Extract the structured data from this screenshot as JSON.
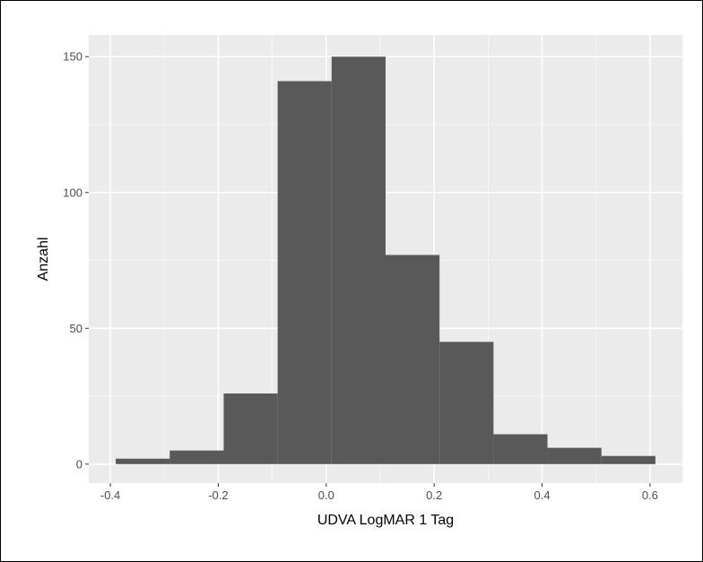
{
  "chart_data": {
    "type": "bar",
    "subtype": "histogram",
    "title": "",
    "xlabel": "UDVA LogMAR 1 Tag",
    "ylabel": "Anzahl",
    "xlim": [
      -0.44,
      0.66
    ],
    "ylim": [
      -7,
      158
    ],
    "x_ticks": [
      -0.4,
      -0.2,
      0.0,
      0.2,
      0.4,
      0.6
    ],
    "x_tick_labels": [
      "-0.4",
      "-0.2",
      "0.0",
      "0.2",
      "0.4",
      "0.6"
    ],
    "y_ticks": [
      0,
      50,
      100,
      150
    ],
    "y_tick_labels": [
      "0",
      "50",
      "100",
      "150"
    ],
    "bins": [
      {
        "x0": -0.39,
        "x1": -0.29,
        "count": 2
      },
      {
        "x0": -0.29,
        "x1": -0.19,
        "count": 5
      },
      {
        "x0": -0.19,
        "x1": -0.09,
        "count": 26
      },
      {
        "x0": -0.09,
        "x1": 0.01,
        "count": 141
      },
      {
        "x0": 0.01,
        "x1": 0.11,
        "count": 150
      },
      {
        "x0": 0.11,
        "x1": 0.21,
        "count": 77
      },
      {
        "x0": 0.21,
        "x1": 0.31,
        "count": 45
      },
      {
        "x0": 0.31,
        "x1": 0.41,
        "count": 11
      },
      {
        "x0": 0.41,
        "x1": 0.51,
        "count": 6
      },
      {
        "x0": 0.51,
        "x1": 0.61,
        "count": 3
      }
    ],
    "grid": true,
    "legend": "none",
    "colors": {
      "panel_background": "#ebebeb",
      "grid_major": "#ffffff",
      "bar_fill": "#595959",
      "tick_label": "#4d4d4d",
      "tick_mark": "#333333"
    }
  }
}
